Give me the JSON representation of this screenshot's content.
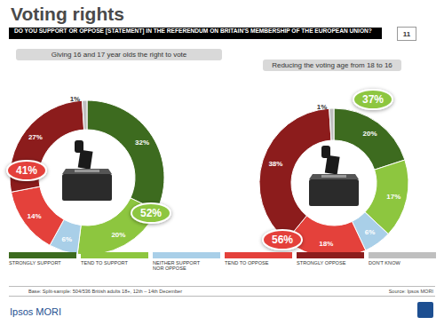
{
  "page": {
    "title": "Voting rights",
    "question": "DO YOU SUPPORT OR OPPOSE [STATEMENT] IN THE REFERENDUM ON BRITAIN'S MEMBERSHIP OF THE EUROPEAN UNION?",
    "page_number": "11",
    "base": "Base: Split-sample: 504/536 British adults 18+, 12th – 14th December",
    "source": "Source: Ipsos MORI",
    "logo": "Ipsos MORI"
  },
  "chart_data": [
    {
      "type": "pie",
      "title": "Giving 16 and 17 year olds the right to vote",
      "categories": [
        "STRONGLY SUPPORT",
        "TEND TO SUPPORT",
        "NEITHER SUPPORT NOR OPPOSE",
        "TEND TO OPPOSE",
        "STRONGLY OPPOSE",
        "DON'T KNOW"
      ],
      "values": [
        32,
        20,
        6,
        14,
        27,
        1
      ],
      "value_labels": [
        "32%",
        "20%",
        "6%",
        "14%",
        "27%",
        "1%"
      ],
      "colors": [
        "#3d6b1f",
        "#8dc63f",
        "#a9cfe8",
        "#e4413b",
        "#8c1c1c",
        "#bfbfbf"
      ],
      "data_labels": true,
      "legend": "bottom",
      "annotations": [
        {
          "value": 52,
          "label": "52%",
          "color": "#8dc63f"
        },
        {
          "value": 41,
          "label": "41%",
          "color": "#e4413b"
        }
      ]
    },
    {
      "type": "pie",
      "title": "Reducing the voting age from 18 to 16",
      "categories": [
        "STRONGLY SUPPORT",
        "TEND TO SUPPORT",
        "NEITHER SUPPORT NOR OPPOSE",
        "TEND TO OPPOSE",
        "STRONGLY OPPOSE",
        "DON'T KNOW"
      ],
      "values": [
        20,
        17,
        6,
        18,
        38,
        1
      ],
      "value_labels": [
        "20%",
        "17%",
        "6%",
        "18%",
        "38%",
        "1%"
      ],
      "colors": [
        "#3d6b1f",
        "#8dc63f",
        "#a9cfe8",
        "#e4413b",
        "#8c1c1c",
        "#bfbfbf"
      ],
      "data_labels": true,
      "annotations": [
        {
          "value": 37,
          "label": "37%",
          "color": "#8dc63f"
        },
        {
          "value": 56,
          "label": "56%",
          "color": "#e4413b"
        }
      ]
    }
  ]
}
